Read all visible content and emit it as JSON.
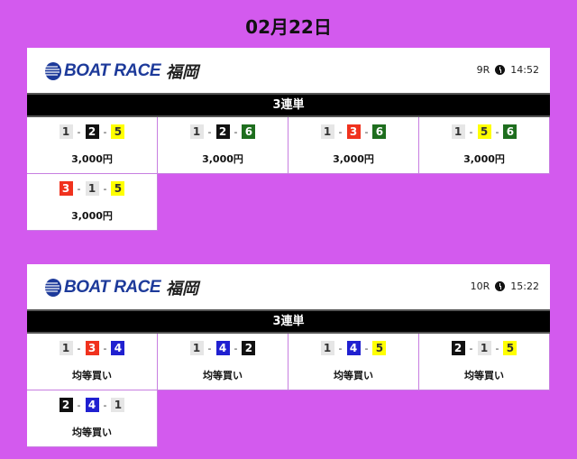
{
  "date": "02月22日",
  "boat_colors": {
    "1": [
      "#e6e6e6",
      "#333333"
    ],
    "2": [
      "#111111",
      "#ffffff"
    ],
    "3": [
      "#f0321e",
      "#ffffff"
    ],
    "4": [
      "#2020d0",
      "#ffffff"
    ],
    "5": [
      "#ffff00",
      "#333333"
    ],
    "6": [
      "#1e6e1e",
      "#ffffff"
    ]
  },
  "cards": [
    {
      "logo": "BOAT RACE",
      "venue": "福岡",
      "race": "9R",
      "time": "14:52",
      "bet_type": "3連単",
      "bets": [
        {
          "combo": [
            "1",
            "2",
            "5"
          ],
          "amount": "3,000円"
        },
        {
          "combo": [
            "1",
            "2",
            "6"
          ],
          "amount": "3,000円"
        },
        {
          "combo": [
            "1",
            "3",
            "6"
          ],
          "amount": "3,000円"
        },
        {
          "combo": [
            "1",
            "5",
            "6"
          ],
          "amount": "3,000円"
        },
        {
          "combo": [
            "3",
            "1",
            "5"
          ],
          "amount": "3,000円"
        }
      ]
    },
    {
      "logo": "BOAT RACE",
      "venue": "福岡",
      "race": "10R",
      "time": "15:22",
      "bet_type": "3連単",
      "bets": [
        {
          "combo": [
            "1",
            "3",
            "4"
          ],
          "amount": "均等買い"
        },
        {
          "combo": [
            "1",
            "4",
            "2"
          ],
          "amount": "均等買い"
        },
        {
          "combo": [
            "1",
            "4",
            "5"
          ],
          "amount": "均等買い"
        },
        {
          "combo": [
            "2",
            "1",
            "5"
          ],
          "amount": "均等買い"
        },
        {
          "combo": [
            "2",
            "4",
            "1"
          ],
          "amount": "均等買い"
        }
      ]
    }
  ]
}
